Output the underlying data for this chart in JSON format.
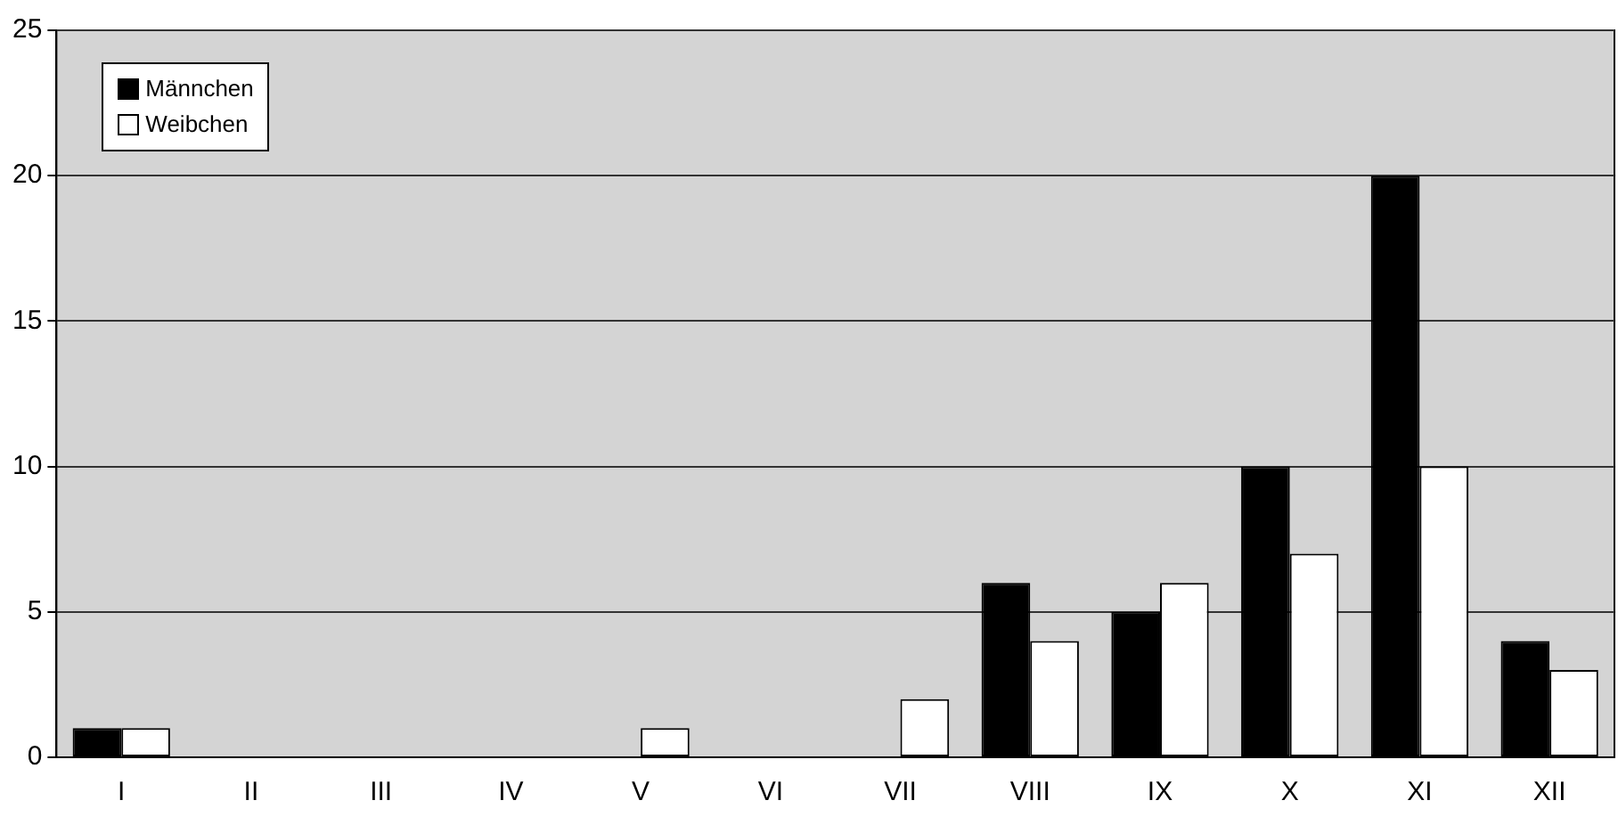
{
  "chart_data": {
    "type": "bar",
    "categories": [
      "I",
      "II",
      "III",
      "IV",
      "V",
      "VI",
      "VII",
      "VIII",
      "IX",
      "X",
      "XI",
      "XII"
    ],
    "series": [
      {
        "name": "Männchen",
        "color": "#000000",
        "values": [
          1,
          0,
          0,
          0,
          0,
          0,
          0,
          6,
          5,
          10,
          20,
          4
        ]
      },
      {
        "name": "Weibchen",
        "color": "#ffffff",
        "values": [
          1,
          0,
          0,
          0,
          1,
          0,
          2,
          4,
          6,
          7,
          10,
          3
        ]
      }
    ],
    "ylim": [
      0,
      25
    ],
    "yticks": [
      0,
      5,
      10,
      15,
      20,
      25
    ],
    "grid": "y",
    "legend": "top left"
  }
}
